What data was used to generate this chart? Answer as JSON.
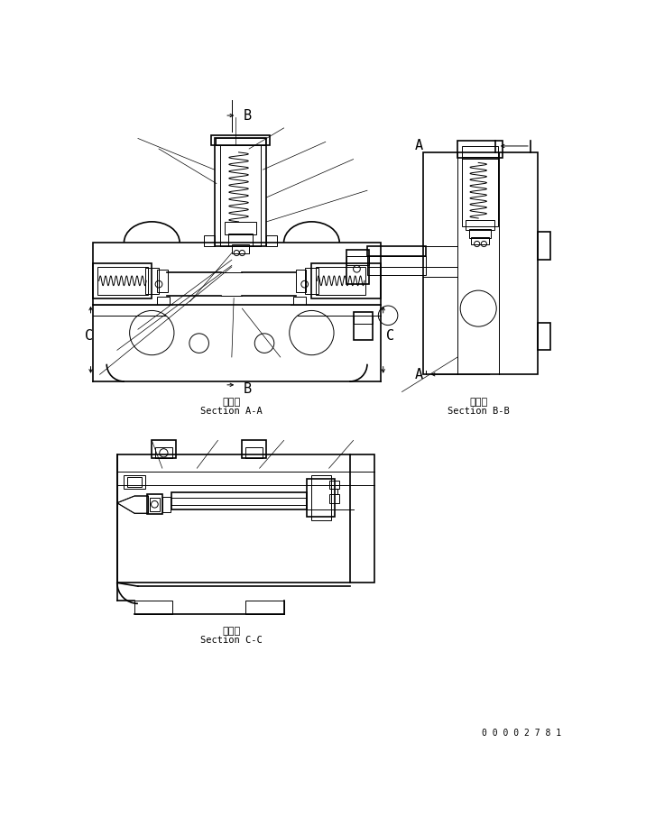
{
  "background_color": "#ffffff",
  "lc": "#000000",
  "fig_width": 7.16,
  "fig_height": 9.26,
  "dpi": 100,
  "section_aa_line1": "断　面",
  "section_aa_line2": "Section A-A",
  "section_bb_line1": "断　面",
  "section_bb_line2": "Section B-B",
  "section_cc_line1": "断　面",
  "section_cc_line2": "Section C-C",
  "part_number": "0 0 0 0 2 7 8 1"
}
